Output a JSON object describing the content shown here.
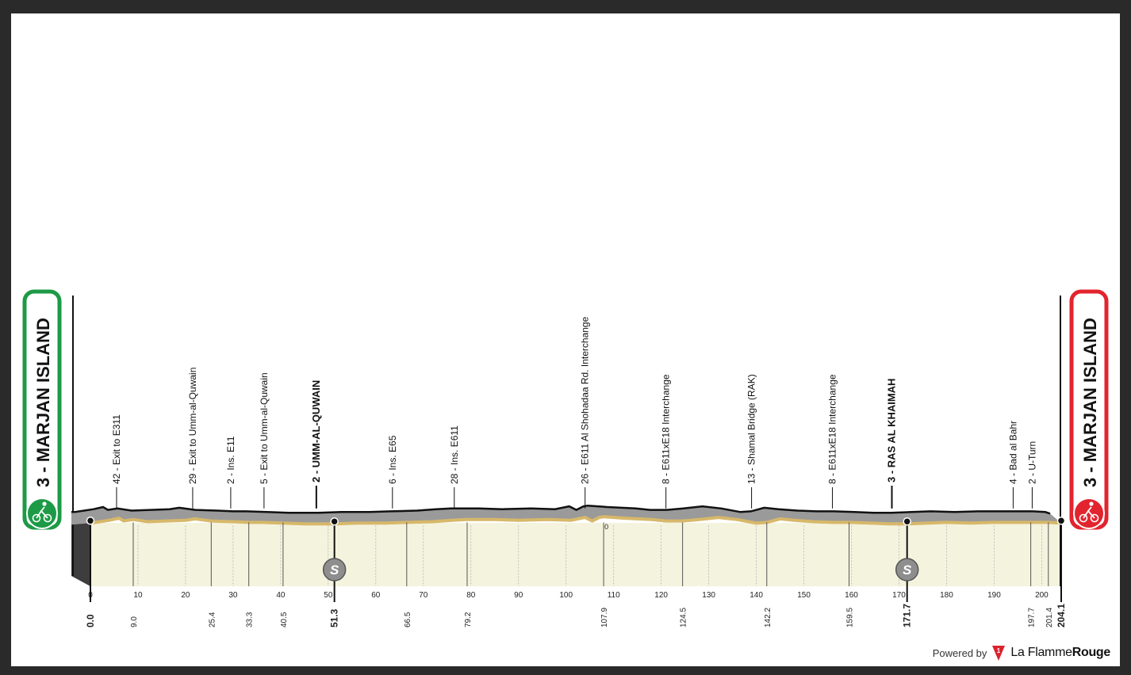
{
  "chart_data": {
    "type": "area",
    "title": "",
    "xlabel": "",
    "ylabel": "",
    "x_axis_ticks": [
      0,
      10,
      20,
      30,
      40,
      50,
      60,
      70,
      80,
      90,
      100,
      110,
      120,
      130,
      140,
      150,
      160,
      170,
      180,
      190,
      200
    ],
    "xlim": [
      0,
      204.1
    ],
    "start_label": "3 - MARJAN ISLAND",
    "finish_label": "3 - MARJAN ISLAND",
    "start_icon": "cyclist-start-icon",
    "finish_icon": "cyclist-finish-icon",
    "start_color": "#1d9a46",
    "finish_color": "#e2242f",
    "sprint_icon": "sprint-s-icon",
    "sea_level_label": "0",
    "elevation": [
      [
        0,
        3
      ],
      [
        2,
        5
      ],
      [
        4,
        7
      ],
      [
        6,
        10
      ],
      [
        7,
        6
      ],
      [
        9,
        8
      ],
      [
        12,
        5
      ],
      [
        16,
        6
      ],
      [
        20,
        7
      ],
      [
        22,
        9
      ],
      [
        25.4,
        6
      ],
      [
        30,
        5
      ],
      [
        33.3,
        4
      ],
      [
        36,
        4
      ],
      [
        40.5,
        3
      ],
      [
        45,
        2
      ],
      [
        51.3,
        2
      ],
      [
        56,
        3
      ],
      [
        62,
        3
      ],
      [
        66.5,
        4
      ],
      [
        72,
        5
      ],
      [
        76,
        7
      ],
      [
        79.2,
        8
      ],
      [
        85,
        8
      ],
      [
        90,
        7
      ],
      [
        96,
        8
      ],
      [
        101,
        7
      ],
      [
        104,
        11
      ],
      [
        105.5,
        6
      ],
      [
        107,
        11
      ],
      [
        107.9,
        12
      ],
      [
        112,
        10
      ],
      [
        118,
        8
      ],
      [
        121,
        6
      ],
      [
        124.5,
        6
      ],
      [
        128,
        8
      ],
      [
        132,
        11
      ],
      [
        136,
        8
      ],
      [
        140,
        3
      ],
      [
        142.2,
        4
      ],
      [
        145,
        9
      ],
      [
        148,
        7
      ],
      [
        152,
        5
      ],
      [
        156,
        4
      ],
      [
        159.5,
        4
      ],
      [
        164,
        3
      ],
      [
        168,
        2
      ],
      [
        171.7,
        2
      ],
      [
        176,
        3
      ],
      [
        180,
        4
      ],
      [
        185,
        3
      ],
      [
        190,
        4
      ],
      [
        194,
        4
      ],
      [
        197.7,
        4
      ],
      [
        201.4,
        4
      ],
      [
        204.1,
        3
      ]
    ],
    "km_markers": [
      {
        "km": "0.0",
        "x": 0,
        "bold": true
      },
      {
        "km": "9.0",
        "x": 9.0,
        "bold": false
      },
      {
        "km": "25.4",
        "x": 25.4,
        "bold": false
      },
      {
        "km": "33.3",
        "x": 33.3,
        "bold": false
      },
      {
        "km": "40.5",
        "x": 40.5,
        "bold": false
      },
      {
        "km": "51.3",
        "x": 51.3,
        "bold": true
      },
      {
        "km": "66.5",
        "x": 66.5,
        "bold": false
      },
      {
        "km": "79.2",
        "x": 79.2,
        "bold": false
      },
      {
        "km": "107.9",
        "x": 107.9,
        "bold": false
      },
      {
        "km": "124.5",
        "x": 124.5,
        "bold": false
      },
      {
        "km": "142.2",
        "x": 142.2,
        "bold": false
      },
      {
        "km": "159.5",
        "x": 159.5,
        "bold": false
      },
      {
        "km": "171.7",
        "x": 171.7,
        "bold": true
      },
      {
        "km": "197.7",
        "x": 197.7,
        "bold": false
      },
      {
        "km": "201.4",
        "x": 201.4,
        "bold": false
      },
      {
        "km": "204.1",
        "x": 204.1,
        "bold": true
      }
    ],
    "waypoints": [
      {
        "label": "42 - Exit to E311",
        "x": 5.5,
        "bold": false
      },
      {
        "label": "29 - Exit to Umm-al-Quwain",
        "x": 21.5,
        "bold": false
      },
      {
        "label": "2 - Ins. E11",
        "x": 29.5,
        "bold": false
      },
      {
        "label": "5 - Exit to Umm-al-Quwain",
        "x": 36.5,
        "bold": false
      },
      {
        "label": "2 - UMM-AL-QUWAIN",
        "x": 47.5,
        "bold": true
      },
      {
        "label": "6 - Ins. E65",
        "x": 63.5,
        "bold": false
      },
      {
        "label": "28 - Ins. E611",
        "x": 76.5,
        "bold": false
      },
      {
        "label": "26 - E611 Al Shohadaa Rd. Interchange",
        "x": 104,
        "bold": false
      },
      {
        "label": "8 - E611xE18 Interchange",
        "x": 121,
        "bold": false
      },
      {
        "label": "13 - Shamal  Bridge (RAK)",
        "x": 139,
        "bold": false
      },
      {
        "label": "8 - E611xE18 Interchange",
        "x": 156,
        "bold": false
      },
      {
        "label": "3 - RAS AL KHAIMAH",
        "x": 168.5,
        "bold": true
      },
      {
        "label": "4 - Bad al Bahr",
        "x": 194,
        "bold": false
      },
      {
        "label": "2 - U-Turn",
        "x": 198,
        "bold": false
      }
    ],
    "sprints": [
      51.3,
      171.7
    ],
    "grid": true
  },
  "footer": {
    "powered_by": "Powered by",
    "brand_light": "La Flamme",
    "brand_bold": "Rouge",
    "brand_color": "#d9232e"
  }
}
